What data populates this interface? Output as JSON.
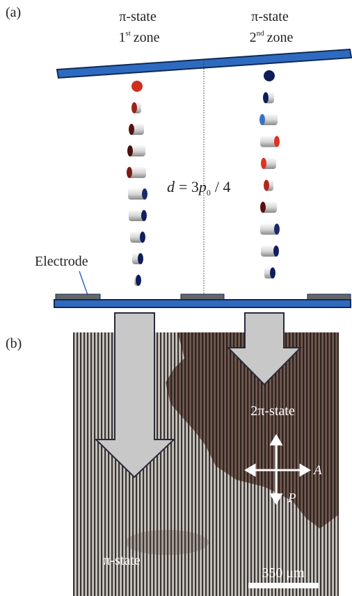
{
  "panel_a": {
    "label": "(a)",
    "zones": [
      {
        "state": "π-state",
        "number": "1",
        "suffix": "st",
        "word": "zone"
      },
      {
        "state": "π-state",
        "number": "2",
        "suffix": "nd",
        "word": "zone"
      }
    ],
    "equation": {
      "lhs": "d",
      "mid": "= 3",
      "var": "p",
      "sub": "0",
      "tail": "/ 4"
    },
    "electrode": "Electrode"
  },
  "panel_b": {
    "label": "(b)",
    "region_2pi": "2π-state",
    "analyzer": "A",
    "polarizer": "P",
    "region_pi": "π-state",
    "scale": "350 μm"
  }
}
